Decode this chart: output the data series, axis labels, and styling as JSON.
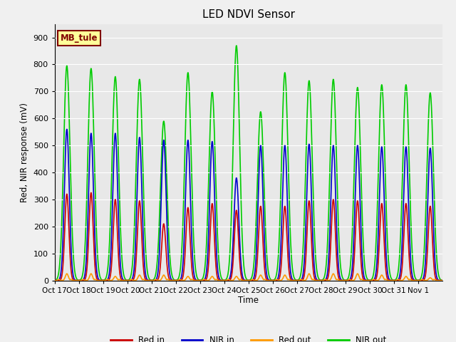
{
  "title": "LED NDVI Sensor",
  "ylabel": "Red, NIR response (mV)",
  "xlabel": "Time",
  "annotation_text": "MB_tule",
  "ylim": [
    0,
    950
  ],
  "yticks": [
    0,
    100,
    200,
    300,
    400,
    500,
    600,
    700,
    800,
    900
  ],
  "xtick_labels": [
    "Oct 17",
    "Oct 18",
    "Oct 19",
    "Oct 20",
    "Oct 21",
    "Oct 22",
    "Oct 23",
    "Oct 24",
    "Oct 25",
    "Oct 26",
    "Oct 27",
    "Oct 28",
    "Oct 29",
    "Oct 30",
    "Oct 31",
    "Nov 1"
  ],
  "colors": {
    "red_in": "#cc0000",
    "nir_in": "#0000cc",
    "red_out": "#ff9900",
    "nir_out": "#00cc00"
  },
  "background_color": "#f0f0f0",
  "plot_bg_color": "#e8e8e8",
  "legend_labels": [
    "Red in",
    "NIR in",
    "Red out",
    "NIR out"
  ],
  "annotation_box_color": "#ffff99",
  "annotation_text_color": "#800000",
  "nir_out_peaks": [
    795,
    785,
    755,
    745,
    590,
    770,
    700,
    870,
    625,
    770,
    740,
    745,
    715,
    725,
    725,
    695
  ],
  "nir_in_peaks": [
    560,
    545,
    545,
    530,
    520,
    520,
    515,
    380,
    500,
    500,
    505,
    500,
    500,
    495,
    495,
    490
  ],
  "red_in_peaks": [
    320,
    325,
    300,
    295,
    210,
    270,
    285,
    260,
    275,
    275,
    295,
    300,
    295,
    285,
    285,
    275
  ],
  "red_out_peaks": [
    25,
    25,
    15,
    20,
    20,
    15,
    15,
    15,
    20,
    20,
    25,
    25,
    25,
    20,
    15,
    10
  ]
}
